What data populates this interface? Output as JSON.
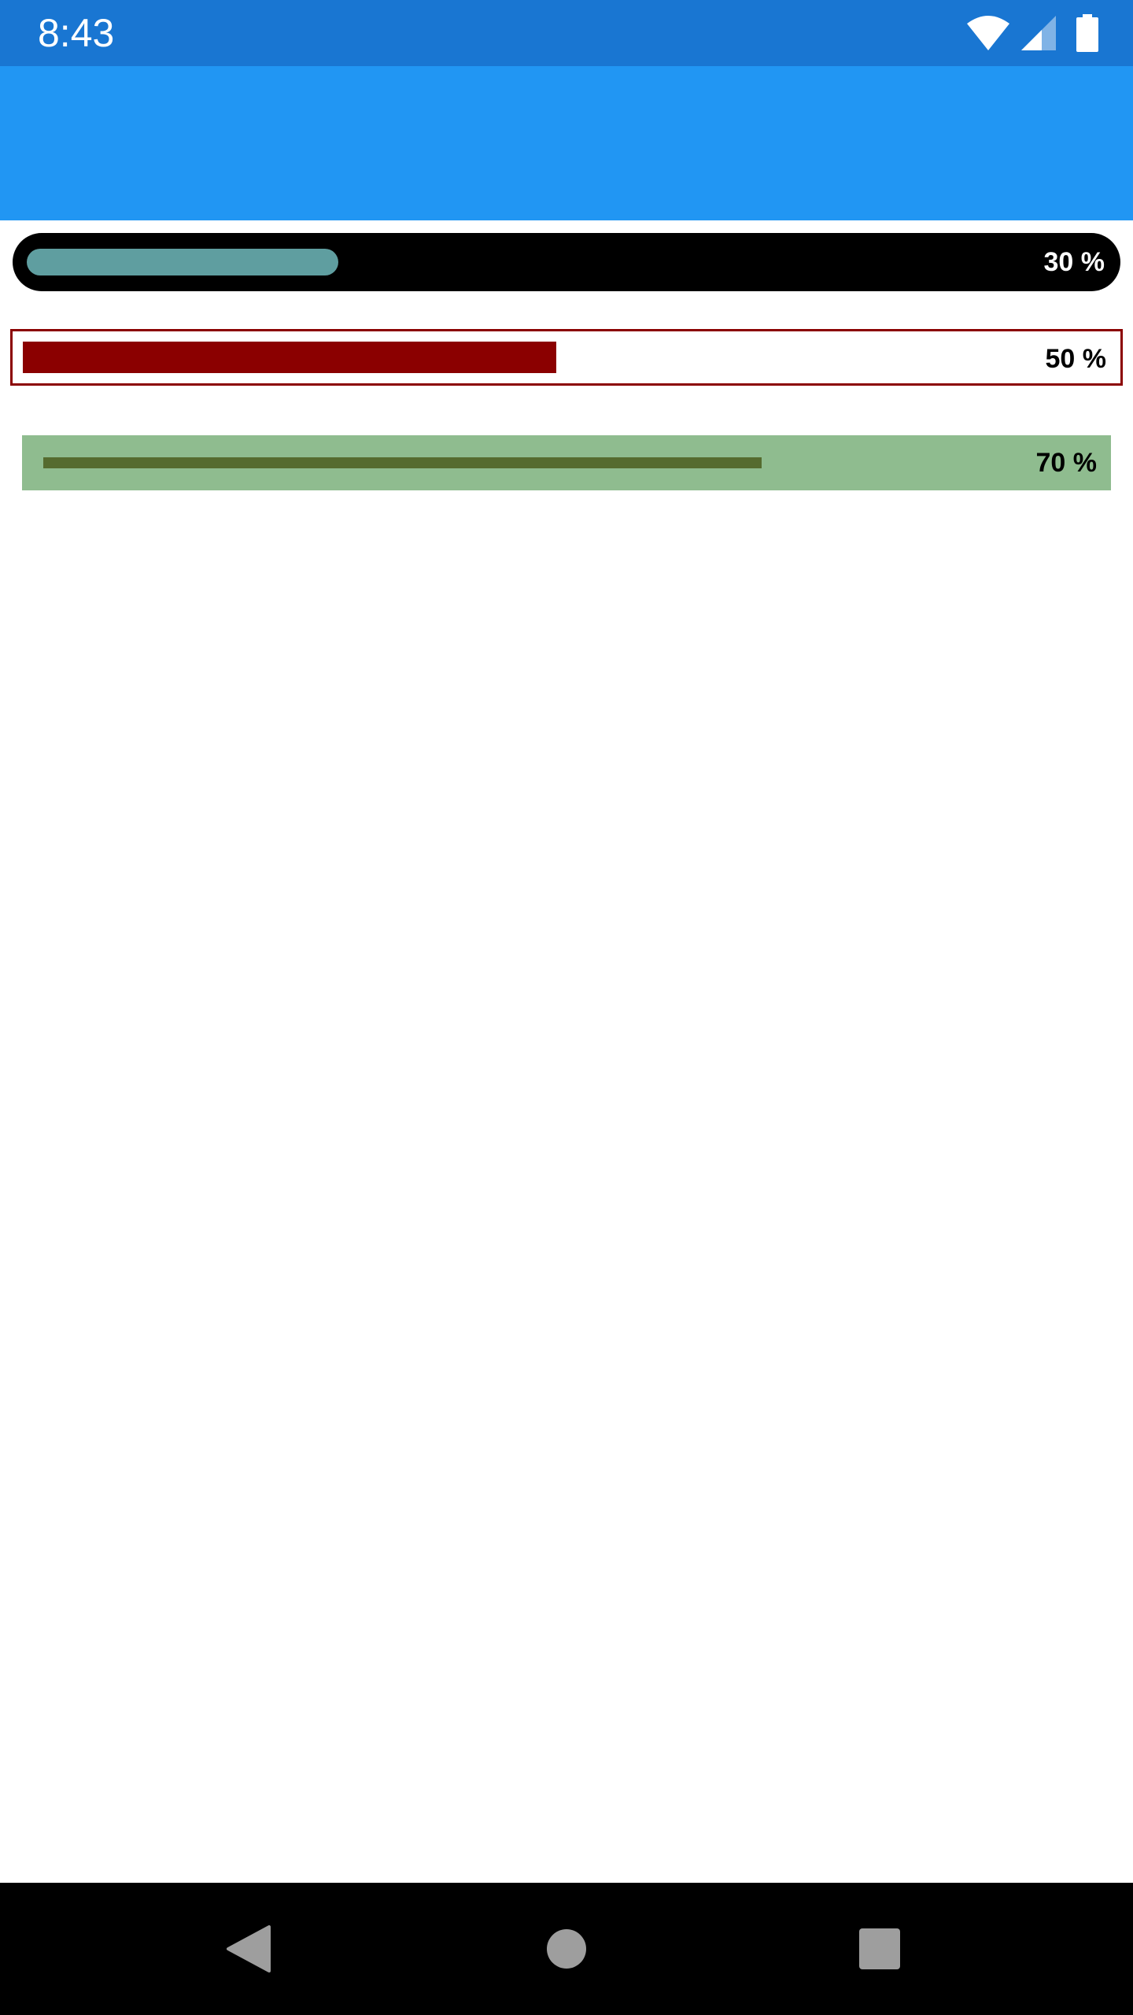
{
  "status_bar": {
    "time": "8:43",
    "background": "#1976D2",
    "icons": [
      "wifi-icon",
      "cellular-signal-icon",
      "battery-icon"
    ]
  },
  "app_bar": {
    "background": "#2196F3"
  },
  "progress_bars": [
    {
      "value": 0.3,
      "label": "30 %",
      "track_color": "#000000",
      "fill_color": "#5F9EA0",
      "label_color": "#FFFFFF",
      "style": "rounded"
    },
    {
      "value": 0.5,
      "label": "50 %",
      "track_color": "#FFFFFF",
      "border_color": "#8B0000",
      "fill_color": "#8B0000",
      "label_color": "#000000",
      "style": "outlined"
    },
    {
      "value": 0.7,
      "label": "70 %",
      "track_color": "#8FBC8F",
      "fill_color": "#556B2F",
      "label_color": "#000000",
      "style": "thin"
    }
  ],
  "nav_bar": {
    "buttons": [
      "back-icon",
      "home-icon",
      "recents-icon"
    ],
    "icon_color": "#9E9E9E"
  }
}
